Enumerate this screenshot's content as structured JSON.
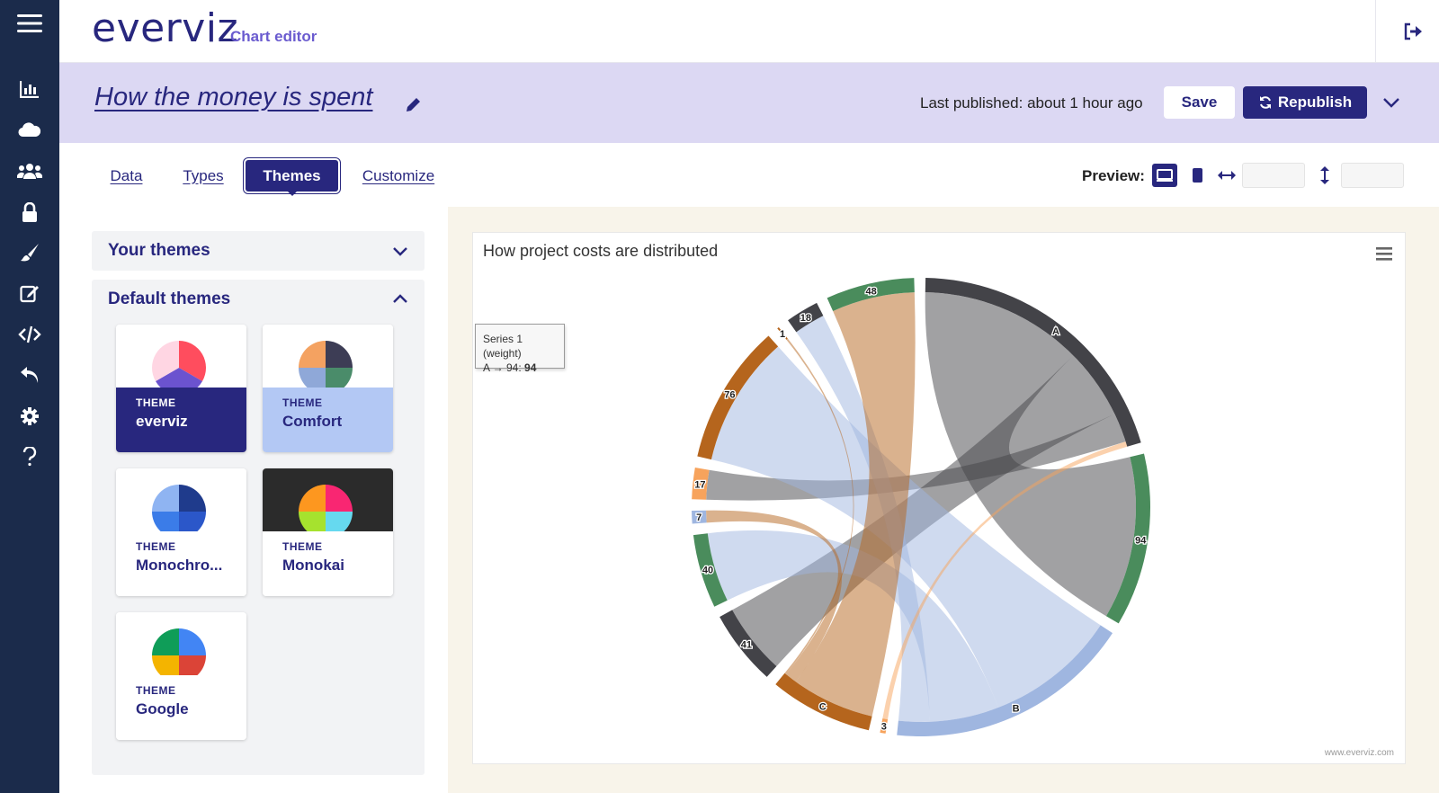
{
  "app": {
    "logo": "everviz",
    "subtitle": "Chart editor"
  },
  "nav": {
    "items": [
      {
        "name": "menu-icon"
      },
      {
        "name": "charts-icon"
      },
      {
        "name": "cloud-icon"
      },
      {
        "name": "team-icon"
      },
      {
        "name": "lock-icon"
      },
      {
        "name": "brush-icon"
      },
      {
        "name": "edit-icon"
      },
      {
        "name": "code-icon"
      },
      {
        "name": "undo-icon"
      },
      {
        "name": "gear-icon"
      },
      {
        "name": "help-icon"
      }
    ]
  },
  "header": {
    "chart_title": "How the money is spent",
    "last_published": "Last published: about 1 hour ago",
    "save_label": "Save",
    "republish_label": "Republish"
  },
  "tabs": [
    "Data",
    "Types",
    "Themes",
    "Customize"
  ],
  "active_tab": "Themes",
  "preview": {
    "label": "Preview:",
    "width_value": "",
    "height_value": ""
  },
  "themes_panel": {
    "your_themes": "Your themes",
    "default_themes": "Default themes",
    "kicker": "THEME",
    "cards": [
      {
        "name": "everviz",
        "bg": "#28277e",
        "text": "#ffffff",
        "thumb_bg": "#ffffff",
        "slices": [
          "#ff4d5e",
          "#6b53cf",
          "#ffd6e3"
        ]
      },
      {
        "name": "Comfort",
        "bg": "#b3c8f4",
        "text": "#28277e",
        "thumb_bg": "#ffffff",
        "slices": [
          "#3d3d55",
          "#4a8c6a",
          "#8fa8d8",
          "#f4a261"
        ]
      },
      {
        "name": "Monochro...",
        "bg": "#ffffff",
        "text": "#28277e",
        "thumb_bg": "#ffffff",
        "slices": [
          "#1f3b8c",
          "#2b57c9",
          "#3b7ce8",
          "#8fb4f2"
        ]
      },
      {
        "name": "Monokai",
        "bg": "#ffffff",
        "text": "#28277e",
        "thumb_bg": "#2b2b2b",
        "slices": [
          "#f92672",
          "#66d9ef",
          "#a6e22e",
          "#fd971f"
        ]
      },
      {
        "name": "Google",
        "bg": "#ffffff",
        "text": "#28277e",
        "thumb_bg": "#ffffff",
        "slices": [
          "#4285f4",
          "#db4437",
          "#f4b400",
          "#0f9d58"
        ]
      }
    ]
  },
  "chart": {
    "title": "How project costs are distributed",
    "credits": "www.everviz.com",
    "tooltip": {
      "series": "Series 1 (weight)",
      "point": "A → 94:",
      "value": "94"
    }
  },
  "chart_data": {
    "type": "chord",
    "title": "How project costs are distributed",
    "nodes": [
      {
        "id": "A",
        "color": "#434348"
      },
      {
        "id": "94",
        "color": "#4a8c5c"
      },
      {
        "id": "B",
        "color": "#9fb6e0"
      },
      {
        "id": "3",
        "color": "#f7a35c"
      },
      {
        "id": "C",
        "color": "#b5651d"
      },
      {
        "id": "41",
        "color": "#434348"
      },
      {
        "id": "40",
        "color": "#4a8c5c"
      },
      {
        "id": "7",
        "color": "#9fb6e0"
      },
      {
        "id": "17",
        "color": "#f7a35c"
      },
      {
        "id": "76",
        "color": "#b5651d"
      },
      {
        "id": "1",
        "color": "#b5651d"
      },
      {
        "id": "18",
        "color": "#434348"
      },
      {
        "id": "48",
        "color": "#4a8c5c"
      }
    ],
    "links": [
      {
        "from": "A",
        "to": "94",
        "weight": 94
      },
      {
        "from": "A",
        "to": "41",
        "weight": 41
      },
      {
        "from": "A",
        "to": "17",
        "weight": 17
      },
      {
        "from": "B",
        "to": "76",
        "weight": 76
      },
      {
        "from": "B",
        "to": "40",
        "weight": 40
      },
      {
        "from": "B",
        "to": "18",
        "weight": 18
      },
      {
        "from": "C",
        "to": "48",
        "weight": 48
      },
      {
        "from": "C",
        "to": "7",
        "weight": 7
      },
      {
        "from": "C",
        "to": "1",
        "weight": 1
      },
      {
        "from": "3",
        "to": "A",
        "weight": 3
      }
    ],
    "tooltip_series": "Series 1 (weight)"
  }
}
